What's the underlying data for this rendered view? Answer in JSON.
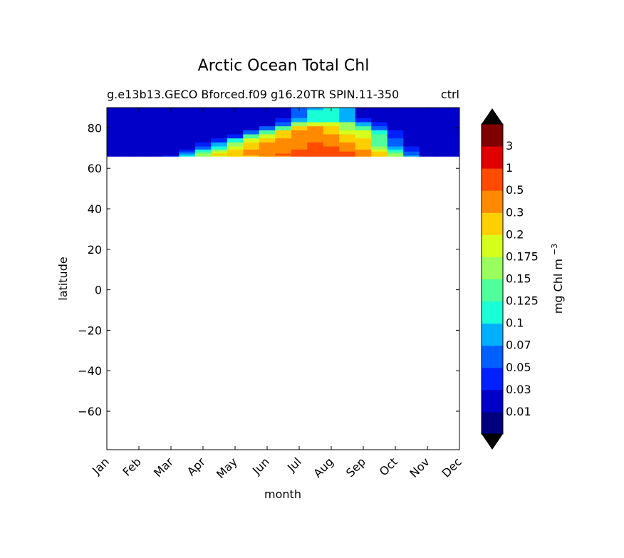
{
  "chart_data": {
    "type": "heatmap",
    "title": "Arctic Ocean Total Chl",
    "subtitle_left": "g.e13b13.GECO Bforced.f09 g16.20TR SPIN.11-350",
    "subtitle_right": "ctrl",
    "xlabel": "month",
    "ylabel": "latitude",
    "x_categories": [
      "Jan",
      "Feb",
      "Mar",
      "Apr",
      "May",
      "Jun",
      "Jul",
      "Aug",
      "Sep",
      "Oct",
      "Nov",
      "Dec"
    ],
    "xlim": [
      0,
      11
    ],
    "ylim": [
      -79,
      90
    ],
    "y_ticks": [
      80,
      60,
      40,
      20,
      0,
      -20,
      -40,
      -60
    ],
    "y_tick_labels": [
      "80",
      "60",
      "40",
      "20",
      "0",
      "−20",
      "−40",
      "−60"
    ],
    "data_lat_range": [
      66,
      90
    ],
    "colorbar": {
      "label": "mg Chl m",
      "label_superscript": "−3",
      "extend": "both",
      "levels": [
        "0.01",
        "0.03",
        "0.05",
        "0.07",
        "0.1",
        "0.125",
        "0.15",
        "0.175",
        "0.2",
        "0.3",
        "0.5",
        "1",
        "3"
      ],
      "colors": [
        "#00007f",
        "#0000c8",
        "#0020ff",
        "#0060ff",
        "#00b0ff",
        "#19ffd6",
        "#50ff99",
        "#99ff5e",
        "#d6ff1e",
        "#ffd000",
        "#ff8a00",
        "#ff4a00",
        "#e00000",
        "#7f0000"
      ],
      "under_color": "#000000",
      "over_color": "#000000"
    },
    "contour_grid": {
      "months": [
        0,
        0.5,
        1,
        1.5,
        2,
        2.5,
        3,
        3.5,
        4,
        4.5,
        5,
        5.5,
        6,
        6.5,
        7,
        7.5,
        8,
        8.5,
        9,
        9.5,
        10,
        10.5,
        11
      ],
      "latitudes": [
        66,
        67,
        68,
        69,
        70,
        72,
        74,
        76,
        78,
        80,
        82,
        84,
        86,
        88,
        90
      ],
      "level_index": [
        [
          1,
          1,
          1,
          1,
          2,
          5,
          7,
          8,
          9,
          9,
          10,
          10,
          11,
          11,
          11,
          11,
          10,
          9,
          7,
          4,
          1,
          1,
          1
        ],
        [
          1,
          1,
          1,
          1,
          1,
          4,
          7,
          9,
          9,
          10,
          10,
          11,
          11,
          11,
          11,
          11,
          10,
          9,
          7,
          3,
          1,
          1,
          1
        ],
        [
          1,
          1,
          1,
          1,
          1,
          3,
          6,
          8,
          9,
          10,
          10,
          10,
          11,
          11,
          11,
          11,
          10,
          9,
          6,
          3,
          1,
          1,
          1
        ],
        [
          1,
          1,
          1,
          1,
          1,
          2,
          5,
          7,
          9,
          10,
          10,
          10,
          11,
          11,
          11,
          10,
          10,
          8,
          5,
          2,
          1,
          1,
          1
        ],
        [
          1,
          1,
          1,
          1,
          1,
          1,
          3,
          5,
          8,
          9,
          10,
          10,
          10,
          11,
          11,
          10,
          9,
          7,
          4,
          2,
          1,
          1,
          1
        ],
        [
          1,
          1,
          1,
          1,
          1,
          1,
          2,
          4,
          7,
          9,
          10,
          10,
          10,
          11,
          10,
          10,
          9,
          6,
          3,
          1,
          1,
          1,
          1
        ],
        [
          1,
          1,
          1,
          1,
          1,
          1,
          1,
          2,
          5,
          8,
          9,
          10,
          10,
          10,
          10,
          9,
          9,
          6,
          3,
          1,
          1,
          1,
          1
        ],
        [
          1,
          1,
          1,
          1,
          1,
          1,
          1,
          1,
          2,
          6,
          8,
          9,
          10,
          10,
          10,
          9,
          8,
          6,
          2,
          1,
          1,
          1,
          1
        ],
        [
          1,
          1,
          1,
          1,
          1,
          1,
          1,
          1,
          1,
          3,
          6,
          9,
          10,
          10,
          9,
          8,
          8,
          5,
          2,
          1,
          1,
          1,
          1
        ],
        [
          1,
          1,
          1,
          1,
          1,
          1,
          1,
          1,
          1,
          1,
          3,
          6,
          9,
          10,
          9,
          7,
          6,
          3,
          1,
          1,
          1,
          1,
          1
        ],
        [
          1,
          1,
          1,
          1,
          1,
          1,
          1,
          1,
          1,
          1,
          1,
          3,
          7,
          8,
          8,
          7,
          4,
          2,
          1,
          1,
          1,
          1,
          1
        ],
        [
          1,
          1,
          1,
          1,
          1,
          1,
          1,
          1,
          1,
          1,
          1,
          2,
          4,
          5,
          5,
          4,
          2,
          1,
          1,
          1,
          1,
          1,
          1
        ],
        [
          1,
          1,
          1,
          1,
          1,
          1,
          1,
          1,
          1,
          1,
          1,
          1,
          3,
          5,
          5,
          4,
          1,
          1,
          1,
          1,
          1,
          1,
          1
        ],
        [
          1,
          1,
          1,
          1,
          1,
          1,
          1,
          1,
          1,
          1,
          1,
          1,
          3,
          5,
          5,
          4,
          1,
          1,
          1,
          1,
          1,
          1,
          1
        ],
        [
          1,
          1,
          1,
          1,
          1,
          1,
          1,
          1,
          1,
          1,
          1,
          1,
          3,
          4,
          5,
          4,
          1,
          1,
          1,
          1,
          1,
          1,
          1
        ]
      ]
    }
  }
}
